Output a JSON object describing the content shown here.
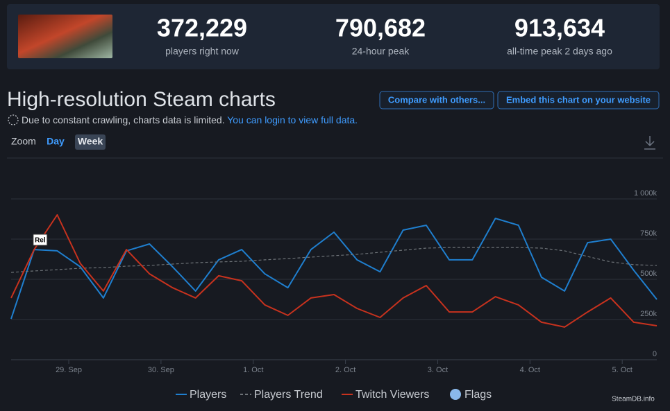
{
  "header": {
    "stats": [
      {
        "value": "372,229",
        "label": "players right now"
      },
      {
        "value": "790,682",
        "label": "24-hour peak"
      },
      {
        "value": "913,634",
        "label": "all-time peak 2 days ago"
      }
    ]
  },
  "page": {
    "title": "High-resolution Steam charts",
    "notice": "Due to constant crawling, charts data is limited.",
    "login_link": "You can login to view full data.",
    "buttons": [
      "Compare with others...",
      "Embed this chart on your website"
    ],
    "zoom_label": "Zoom",
    "zoom_options": [
      "Day",
      "Week"
    ],
    "watermark": "SteamDB.info"
  },
  "chart_data": {
    "type": "line",
    "x": [
      -0.625,
      -0.375,
      -0.125,
      0.125,
      0.375,
      0.625,
      0.875,
      1.125,
      1.375,
      1.625,
      1.875,
      2.125,
      2.375,
      2.625,
      2.875,
      3.125,
      3.375,
      3.625,
      3.875,
      4.125,
      4.375,
      4.625,
      4.875,
      5.125,
      5.375,
      5.625,
      5.875,
      6.125,
      6.375
    ],
    "xlim": [
      -0.625,
      6.375
    ],
    "xticks": [
      {
        "value": 0,
        "label": "29. Sep"
      },
      {
        "value": 1,
        "label": "30. Sep"
      },
      {
        "value": 2,
        "label": "1. Oct"
      },
      {
        "value": 3,
        "label": "2. Oct"
      },
      {
        "value": 4,
        "label": "3. Oct"
      },
      {
        "value": 5,
        "label": "4. Oct"
      },
      {
        "value": 6,
        "label": "5. Oct"
      }
    ],
    "ylim": [
      0,
      1250000
    ],
    "yticks": [
      0,
      {
        "value": 250000,
        "label": "250k"
      },
      {
        "value": 500000,
        "label": "500k"
      },
      {
        "value": 750000,
        "label": "750k"
      },
      {
        "value": 1000000,
        "label": "1 000k"
      }
    ],
    "grid": true,
    "series": [
      {
        "name": "Players",
        "color": "#1f7fcf",
        "dashed": false,
        "values": [
          254000,
          685000,
          677000,
          578000,
          384000,
          677000,
          720000,
          578000,
          427000,
          621000,
          685000,
          534000,
          448000,
          685000,
          793000,
          621000,
          547000,
          806000,
          836000,
          621000,
          621000,
          879000,
          836000,
          513000,
          427000,
          728000,
          750000,
          556000,
          375000
        ]
      },
      {
        "name": "Players Trend",
        "color": "#6e7378",
        "dashed": true,
        "values": [
          543000,
          552000,
          560000,
          569000,
          573000,
          582000,
          586000,
          595000,
          603000,
          608000,
          612000,
          621000,
          629000,
          638000,
          647000,
          655000,
          668000,
          681000,
          694000,
          698000,
          698000,
          698000,
          698000,
          694000,
          677000,
          642000,
          608000,
          591000,
          586000
        ]
      },
      {
        "name": "Twitch Viewers",
        "color": "#c8321e",
        "dashed": false,
        "values": [
          384000,
          685000,
          901000,
          599000,
          427000,
          685000,
          534000,
          448000,
          384000,
          522000,
          491000,
          341000,
          276000,
          384000,
          405000,
          319000,
          263000,
          384000,
          461000,
          297000,
          297000,
          392000,
          341000,
          233000,
          203000,
          297000,
          384000,
          233000,
          211000
        ]
      }
    ],
    "flags_name": "Flags",
    "flags_color": "#8ab8ea",
    "flags": [
      {
        "x": -0.31,
        "label": "Rel"
      }
    ]
  }
}
